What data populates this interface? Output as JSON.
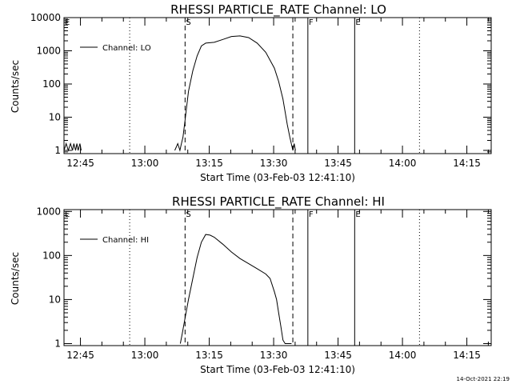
{
  "footer": {
    "timestamp": "14-Oct-2021 22:19"
  },
  "chart_data": [
    {
      "type": "line",
      "title": "RHESSI PARTICLE_RATE Channel: LO",
      "xlabel": "Start Time (03-Feb-03 12:41:10)",
      "ylabel": "Counts/sec",
      "yscale": "log",
      "xunit": "minutes since 12:41:10",
      "xlim": [
        0,
        99.5
      ],
      "ylim": [
        0.8,
        10000
      ],
      "x_ticks": [
        3.83,
        18.83,
        33.83,
        48.83,
        63.83,
        78.83,
        93.83
      ],
      "x_ticklabels": [
        "12:45",
        "13:00",
        "13:15",
        "13:30",
        "13:45",
        "14:00",
        "14:15"
      ],
      "y_ticks": [
        1,
        10,
        100,
        1000,
        10000
      ],
      "y_ticklabels": [
        "1",
        "10",
        "100",
        "1000",
        "10000"
      ],
      "legend": {
        "label": "Channel: LO",
        "position": "top-left"
      },
      "markers": [
        {
          "label": "E",
          "x": 0,
          "style": "dotted"
        },
        {
          "label": "",
          "x": 15.3,
          "style": "dotted"
        },
        {
          "label": "S",
          "x": 28.2,
          "style": "dashed"
        },
        {
          "label": "",
          "x": 53.3,
          "style": "dashed"
        },
        {
          "label": "F",
          "x": 56.8,
          "style": "solid"
        },
        {
          "label": "E",
          "x": 67.7,
          "style": "solid"
        },
        {
          "label": "",
          "x": 82.8,
          "style": "dotted"
        }
      ],
      "series": [
        {
          "name": "Channel: LO",
          "segments": [
            {
              "x": [
                0,
                0.5,
                1.0,
                1.5,
                2.0,
                2.3,
                2.7,
                3.0,
                3.3,
                3.7,
                4.0
              ],
              "y": [
                1,
                1.6,
                1,
                1.6,
                1,
                1.6,
                1,
                1.6,
                1,
                1.6,
                1
              ]
            },
            {
              "x": [
                25.8,
                26.5,
                27.0,
                27.3,
                27.7,
                28.2,
                29.0,
                30.0,
                31.0,
                32.0,
                33.0,
                35.0,
                37.0,
                39.0,
                41.0,
                43.0,
                45.0,
                47.0,
                49.0,
                50.0,
                51.0,
                52.0,
                52.6,
                53.0,
                53.3,
                53.6,
                53.9
              ],
              "y": [
                1,
                1.6,
                1,
                1.5,
                2.5,
                8,
                60,
                250,
                700,
                1400,
                1700,
                1800,
                2200,
                2700,
                2800,
                2500,
                1700,
                900,
                300,
                120,
                35,
                6,
                2.5,
                1.5,
                1,
                1.6,
                1
              ]
            }
          ]
        }
      ]
    },
    {
      "type": "line",
      "title": "RHESSI PARTICLE_RATE Channel: HI",
      "xlabel": "Start Time (03-Feb-03 12:41:10)",
      "ylabel": "Counts/sec",
      "yscale": "log",
      "xunit": "minutes since 12:41:10",
      "xlim": [
        0,
        99.5
      ],
      "ylim": [
        0.9,
        1100
      ],
      "x_ticks": [
        3.83,
        18.83,
        33.83,
        48.83,
        63.83,
        78.83,
        93.83
      ],
      "x_ticklabels": [
        "12:45",
        "13:00",
        "13:15",
        "13:30",
        "13:45",
        "14:00",
        "14:15"
      ],
      "y_ticks": [
        1,
        10,
        100,
        1000
      ],
      "y_ticklabels": [
        "1",
        "10",
        "100",
        "1000"
      ],
      "legend": {
        "label": "Channel: HI",
        "position": "top-left"
      },
      "markers": [
        {
          "label": "E",
          "x": 0,
          "style": "dotted"
        },
        {
          "label": "",
          "x": 15.3,
          "style": "dotted"
        },
        {
          "label": "S",
          "x": 28.2,
          "style": "dashed"
        },
        {
          "label": "",
          "x": 53.3,
          "style": "dashed"
        },
        {
          "label": "F",
          "x": 56.8,
          "style": "solid"
        },
        {
          "label": "E",
          "x": 67.7,
          "style": "solid"
        },
        {
          "label": "",
          "x": 82.8,
          "style": "dotted"
        }
      ],
      "series": [
        {
          "name": "Channel: HI",
          "segments": [
            {
              "x": [
                27.1,
                27.5,
                28.0,
                29.0,
                30.0,
                31.0,
                32.0,
                33.0,
                34.0,
                35.0,
                37.0,
                39.0,
                41.0,
                43.0,
                45.0,
                47.0,
                48.0,
                49.0,
                49.5,
                50.0,
                50.5,
                51.0,
                51.5,
                52.0,
                52.5,
                53.0
              ],
              "y": [
                1,
                1.6,
                3,
                10,
                30,
                90,
                200,
                300,
                290,
                260,
                180,
                120,
                85,
                65,
                50,
                38,
                30,
                15,
                10,
                5,
                2.5,
                1.2,
                1,
                1,
                1,
                1
              ]
            }
          ]
        }
      ]
    }
  ]
}
